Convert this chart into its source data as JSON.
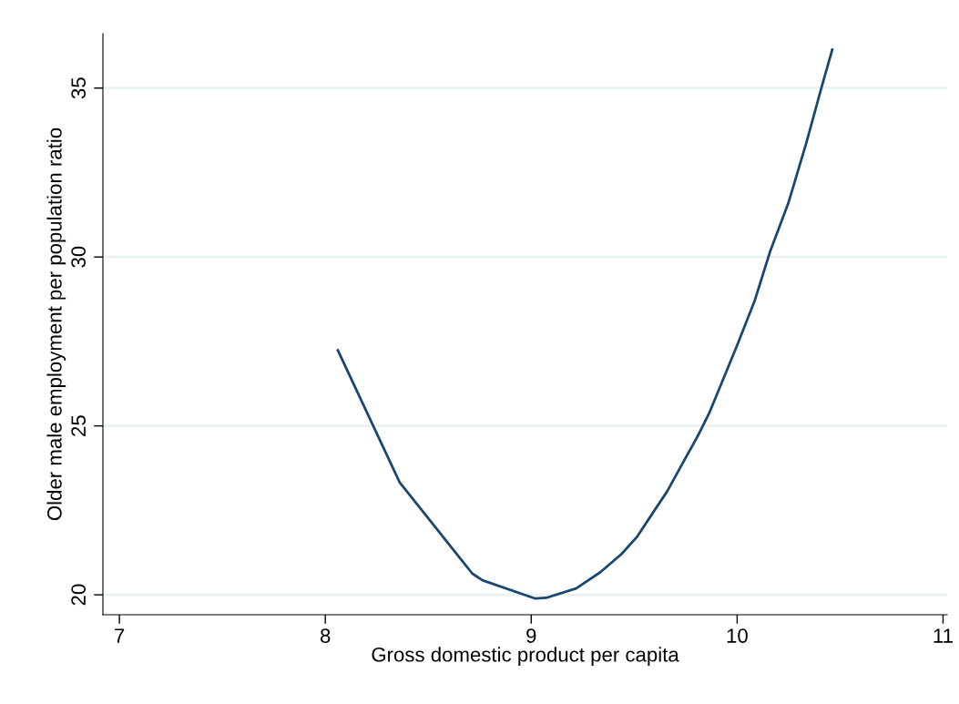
{
  "chart_data": {
    "type": "line",
    "xlabel": "Gross domestic product per capita",
    "ylabel": "Older male employment per population ratio",
    "series": [
      {
        "color": "#1a476f",
        "x": [
          8.061,
          8.361,
          8.714,
          8.763,
          9.02,
          9.072,
          9.218,
          9.336,
          9.439,
          9.513,
          9.601,
          9.66,
          9.733,
          9.807,
          9.866,
          9.999,
          10.086,
          10.16,
          10.249,
          10.337,
          10.41,
          10.462
        ],
        "values": [
          27.24,
          23.33,
          20.63,
          20.43,
          19.89,
          19.91,
          20.19,
          20.67,
          21.21,
          21.71,
          22.52,
          23.06,
          23.87,
          24.68,
          25.4,
          27.37,
          28.72,
          30.16,
          31.6,
          33.4,
          35.02,
          36.14
        ]
      }
    ],
    "xlim": [
      6.92,
      11.02
    ],
    "xticks": [
      7,
      8,
      9,
      10,
      11
    ],
    "ylim": [
      19.41,
      36.61
    ],
    "yticks": [
      20,
      25,
      30,
      35
    ],
    "grid": "y",
    "marker": "none",
    "line_style": "solid"
  }
}
